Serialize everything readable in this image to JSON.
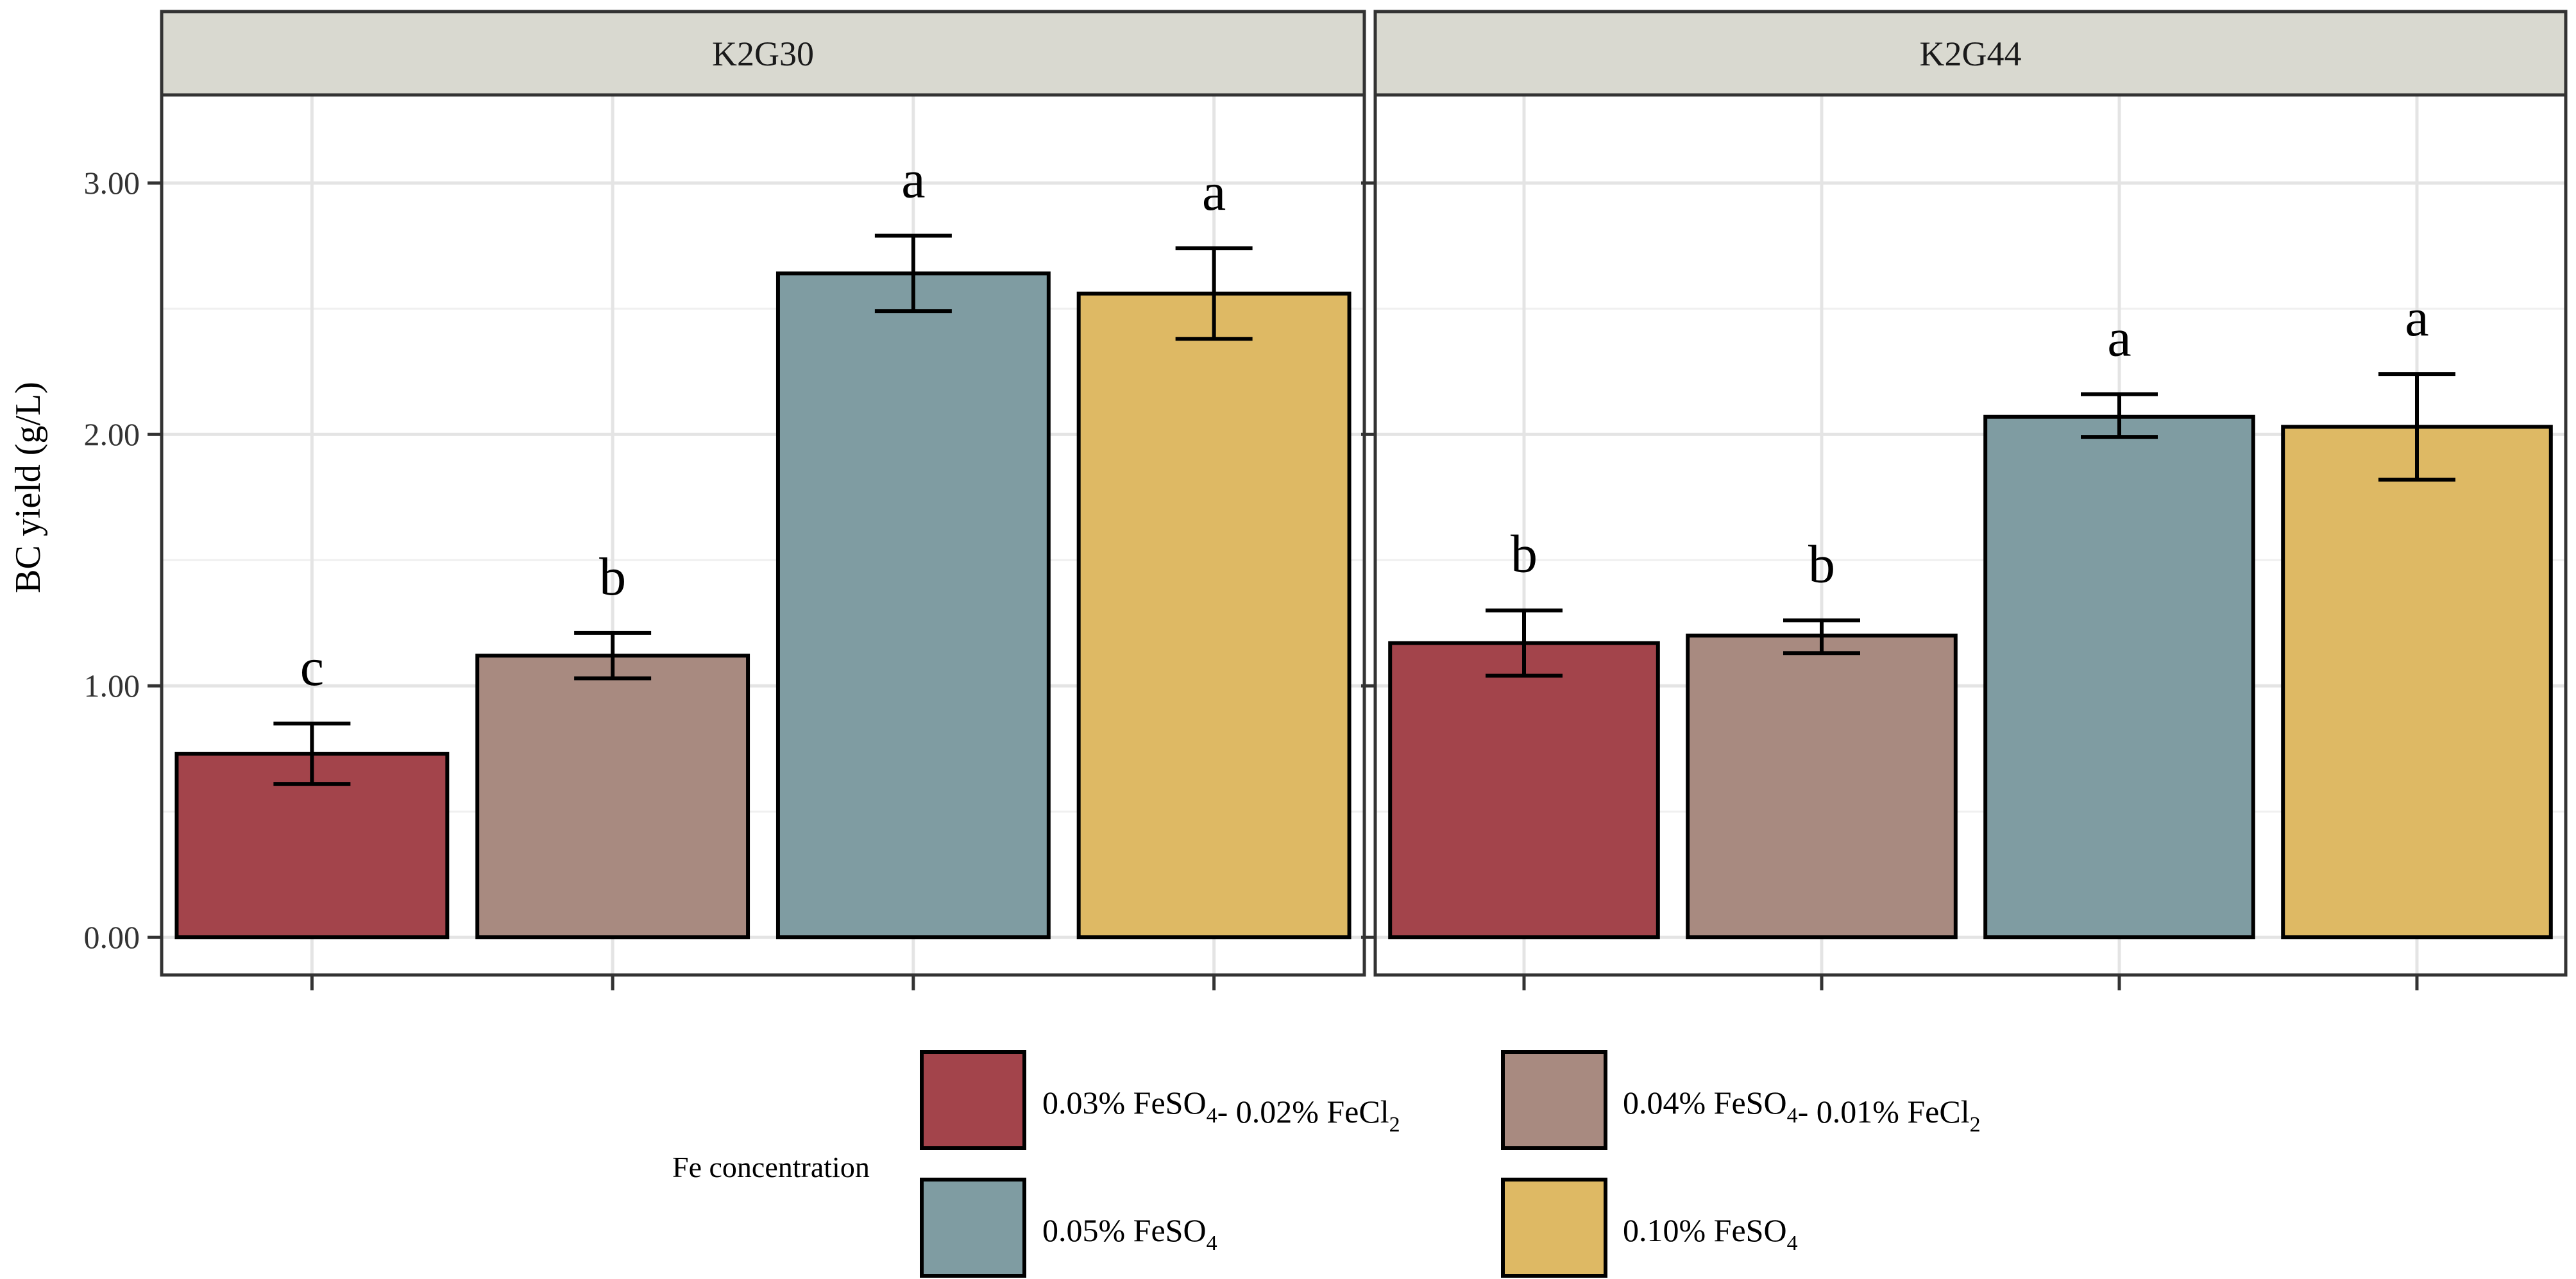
{
  "chart_data": {
    "type": "bar",
    "ylabel": "BC yield (g/L)",
    "ylim": [
      -0.15,
      3.35
    ],
    "yticks": [
      0,
      1,
      2,
      3
    ],
    "ytick_labels": [
      "0.00",
      "1.00",
      "2.00",
      "3.00"
    ],
    "grid": true,
    "legend_title": "Fe concentration",
    "legend_position": "bottom",
    "series": [
      {
        "key": "s1",
        "label_parts": [
          [
            "0.03% FeSO",
            ""
          ],
          [
            "4",
            "sub"
          ],
          [
            "- 0.02% FeCl",
            ""
          ],
          [
            "2",
            "sub"
          ]
        ],
        "color": "#A3444B"
      },
      {
        "key": "s2",
        "label_parts": [
          [
            "0.04% FeSO",
            ""
          ],
          [
            "4",
            "sub"
          ],
          [
            "- 0.01% FeCl",
            ""
          ],
          [
            "2",
            "sub"
          ]
        ],
        "color": "#A88A80"
      },
      {
        "key": "s3",
        "label_parts": [
          [
            "0.05% FeSO",
            ""
          ],
          [
            "4",
            "sub"
          ]
        ],
        "color": "#7F9CA2"
      },
      {
        "key": "s4",
        "label_parts": [
          [
            "0.10% FeSO",
            ""
          ],
          [
            "4",
            "sub"
          ]
        ],
        "color": "#DEB964"
      }
    ],
    "panels": [
      {
        "title": "K2G30",
        "bars": [
          {
            "value": 0.73,
            "err_low": 0.61,
            "err_high": 0.85,
            "letter": "c"
          },
          {
            "value": 1.12,
            "err_low": 1.03,
            "err_high": 1.21,
            "letter": "b"
          },
          {
            "value": 2.64,
            "err_low": 2.49,
            "err_high": 2.79,
            "letter": "a"
          },
          {
            "value": 2.56,
            "err_low": 2.38,
            "err_high": 2.74,
            "letter": "a"
          }
        ]
      },
      {
        "title": "K2G44",
        "bars": [
          {
            "value": 1.17,
            "err_low": 1.04,
            "err_high": 1.3,
            "letter": "b"
          },
          {
            "value": 1.2,
            "err_low": 1.13,
            "err_high": 1.26,
            "letter": "b"
          },
          {
            "value": 2.07,
            "err_low": 1.99,
            "err_high": 2.16,
            "letter": "a"
          },
          {
            "value": 2.03,
            "err_low": 1.82,
            "err_high": 2.24,
            "letter": "a"
          }
        ]
      }
    ]
  }
}
